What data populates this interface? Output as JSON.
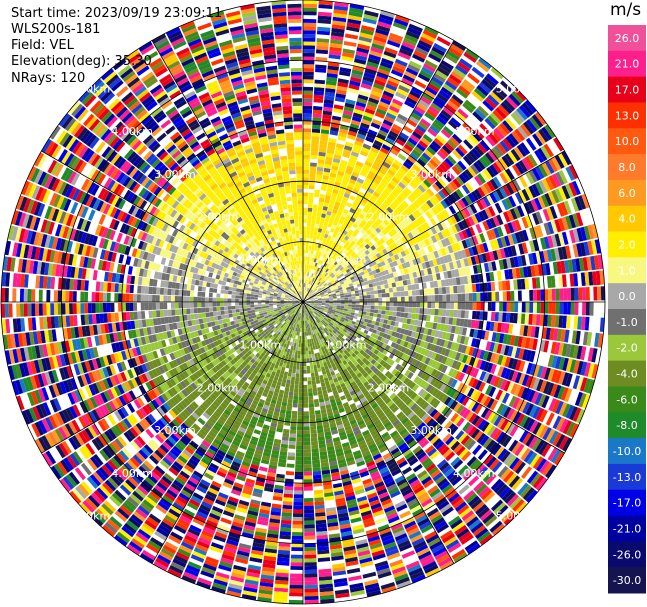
{
  "header": {
    "start_time": "Start time: 2023/09/19 23:09:11",
    "instrument": "WLS200s-181",
    "field": "Field: VEL",
    "elevation": "Elevation(deg): 35.30",
    "nrays": "NRays: 120"
  },
  "colorbar": {
    "unit": "m/s",
    "ticks": [
      "26.0",
      "21.0",
      "17.0",
      "13.0",
      "10.0",
      "8.0",
      "6.0",
      "4.0",
      "2.0",
      "1.0",
      "0.0",
      "-1.0",
      "-2.0",
      "-4.0",
      "-6.0",
      "-8.0",
      "-10.0",
      "-13.0",
      "-17.0",
      "-21.0",
      "-26.0",
      "-30.0"
    ],
    "colors": [
      "#f0509a",
      "#ff1f8c",
      "#e8001a",
      "#ff3000",
      "#ff5a10",
      "#ff7a2a",
      "#ff9a20",
      "#ffc800",
      "#ffee00",
      "#f8f880",
      "#a8a8a8",
      "#707070",
      "#9ac83a",
      "#6e8c22",
      "#3a8a1a",
      "#1e8a2a",
      "#1a78c8",
      "#1a3ad8",
      "#0000e6",
      "#0000a0",
      "#0a0a6e",
      "#141450"
    ]
  },
  "chart_data": {
    "type": "ppi",
    "field": "VEL",
    "nrays": 120,
    "range_rings_km": [
      1.0,
      2.0,
      3.0,
      4.0,
      5.0
    ],
    "ring_labels": [
      "1.00km",
      "2.00km",
      "3.00km",
      "4.00km",
      "5.00km"
    ],
    "spokes_deg": [
      0,
      30,
      60,
      90,
      120,
      150,
      180,
      210,
      240,
      270,
      300,
      330
    ],
    "grid": true,
    "vmin": -30.0,
    "vmax": 26.0,
    "valid_range_km": 2.75,
    "max_range_km": 5.0,
    "pattern": "positive velocities (yellow/orange) to the north, negative velocities (green) to the south; noisy multicolor returns beyond about 2.75 km"
  }
}
